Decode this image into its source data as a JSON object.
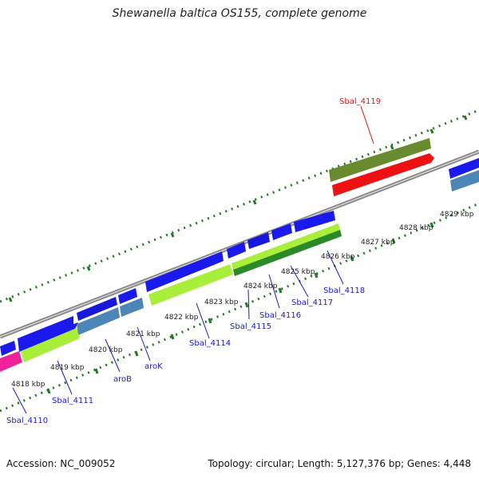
{
  "title": "Shewanella baltica OS155, complete genome",
  "footer": {
    "accession": "Accession: NC_009052",
    "summary": "Topology: circular; Length: 5,127,376 bp; Genes: 4,448"
  },
  "colors": {
    "plus_strand_gene": "#1a1aee",
    "plus_strand_gene_alt": "#1818dd",
    "minus_strand_gene": "#4c86b6",
    "cds_green": "#a8ee3a",
    "cds_dark_green": "#2a8a28",
    "highlight_feature": "#6a8a30",
    "highlight_gene": "#ee1111",
    "pink_feature": "#ee2299",
    "backbone": "#8a8a8a",
    "tick": "#227a22",
    "label_blue": "#1a1acc",
    "label_red": "#dd1111"
  },
  "ticks": {
    "4818": "4818 kbp",
    "4819": "4819 kbp",
    "4820": "4820 kbp",
    "4821": "4821 kbp",
    "4822": "4822 kbp",
    "4823": "4823 kbp",
    "4824": "4824 kbp",
    "4825": "4825 kbp",
    "4826": "4826 kbp",
    "4827": "4827 kbp",
    "4828": "4828 kbp",
    "4829": "4829 kbp"
  },
  "genes": {
    "sbal_4110": "Sbal_4110",
    "sbal_4111": "Sbal_4111",
    "aroB": "aroB",
    "aroK": "aroK",
    "sbal_4114": "Sbal_4114",
    "sbal_4115": "Sbal_4115",
    "sbal_4116": "Sbal_4116",
    "sbal_4117": "Sbal_4117",
    "sbal_4118": "Sbal_4118",
    "sbal_4119": "Sbal_4119"
  }
}
